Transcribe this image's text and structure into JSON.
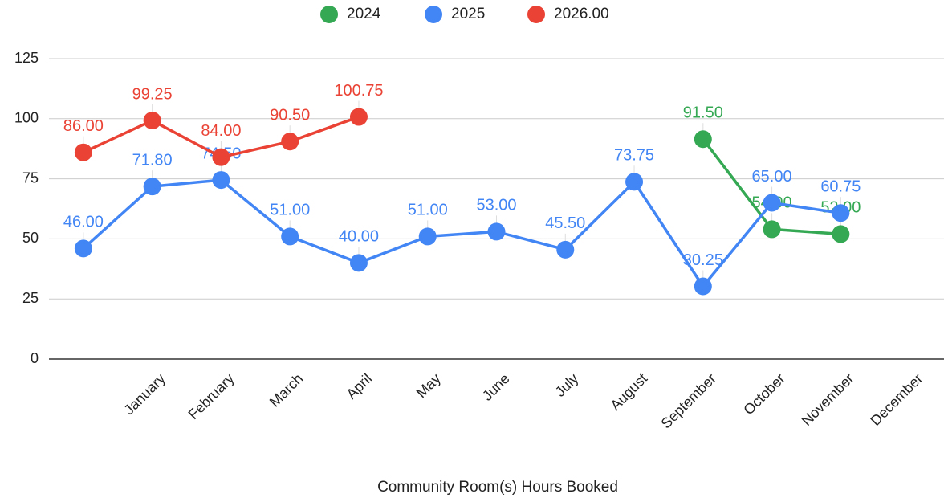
{
  "chart_data": {
    "type": "line",
    "x_label": "Community Room(s) Hours Booked",
    "categories": [
      null,
      "January",
      "February",
      "March",
      "April",
      "May",
      "June",
      "July",
      "August",
      "September",
      "October",
      "November",
      "December"
    ],
    "series": [
      {
        "name": "2024",
        "color": "#34a853",
        "values": [
          null,
          null,
          null,
          null,
          null,
          null,
          null,
          null,
          null,
          91.5,
          54,
          52,
          null
        ],
        "value_labels": [
          null,
          null,
          null,
          null,
          null,
          null,
          null,
          null,
          null,
          "91.50",
          "54.00",
          "52.00",
          null
        ]
      },
      {
        "name": "2025",
        "color": "#4285f4",
        "values": [
          46,
          71.8,
          74.5,
          51,
          40,
          51,
          53,
          45.5,
          73.75,
          30.25,
          65,
          60.75,
          null
        ],
        "value_labels": [
          "46.00",
          "71.80",
          "74.50",
          "51.00",
          "40.00",
          "51.00",
          "53.00",
          "45.50",
          "73.75",
          "30.25",
          "65.00",
          "60.75",
          null
        ]
      },
      {
        "name": "2026.00",
        "color": "#ea4335",
        "values": [
          86,
          99.25,
          84,
          90.5,
          100.75,
          null,
          null,
          null,
          null,
          null,
          null,
          null,
          null
        ],
        "value_labels": [
          "86.00",
          "99.25",
          "84.00",
          "90.50",
          "100.75",
          null,
          null,
          null,
          null,
          null,
          null,
          null,
          null
        ]
      }
    ],
    "ylim": [
      0,
      125
    ],
    "yticks": [
      0,
      25,
      50,
      75,
      100,
      125
    ],
    "grid": true,
    "legend": "top"
  }
}
